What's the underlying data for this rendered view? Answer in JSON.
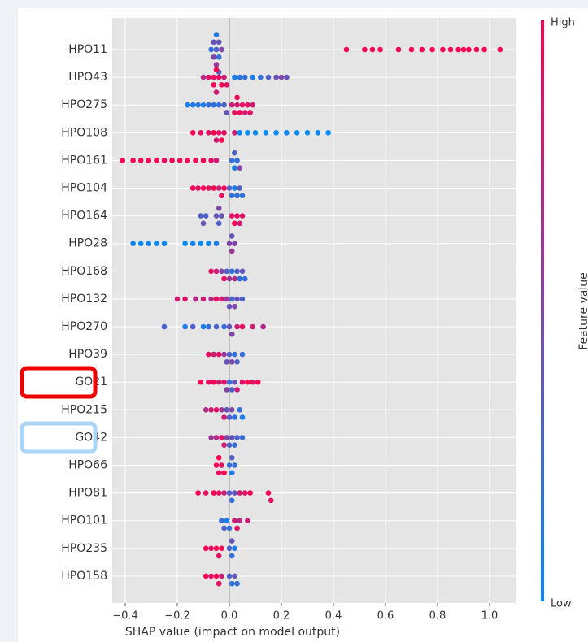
{
  "chart_data": {
    "type": "beeswarm",
    "xlabel": "SHAP value (impact on model output)",
    "xlim": [
      -0.45,
      1.1
    ],
    "xticks": [
      {
        "value": -0.4,
        "label": "−0.4"
      },
      {
        "value": -0.2,
        "label": "−0.2"
      },
      {
        "value": 0,
        "label": "0.0"
      },
      0.2,
      0.4,
      0.6,
      0.8,
      {
        "value": 1.0,
        "label": "1.0"
      }
    ],
    "grid": true,
    "low_color": "#008bfb",
    "high_color": "#ff0052",
    "colorbar_title": "Feature value",
    "colorbar_high": "High",
    "colorbar_low": "Low",
    "series": [
      {
        "name": "HPO11",
        "values": [
          -0.07,
          -0.06,
          -0.05,
          -0.05,
          -0.04,
          -0.04,
          -0.03,
          -0.05,
          -0.06,
          -0.04,
          0.45,
          0.52,
          0.55,
          0.58,
          0.65,
          0.7,
          0.74,
          0.78,
          0.82,
          0.85,
          0.88,
          0.9,
          0.92,
          0.95,
          0.98,
          1.04
        ],
        "feature_values": [
          0.2,
          0.5,
          0.3,
          0.6,
          0.2,
          0.4,
          0.5,
          0.1,
          0.4,
          0.3,
          1,
          1,
          1,
          1,
          1,
          1,
          1,
          1,
          1,
          1,
          1,
          1,
          1,
          1,
          1,
          1
        ]
      },
      {
        "name": "HPO43",
        "values": [
          -0.1,
          -0.08,
          -0.06,
          -0.05,
          -0.05,
          -0.04,
          -0.03,
          -0.02,
          -0.01,
          -0.06,
          0.02,
          0.04,
          0.06,
          0.09,
          0.12,
          0.15,
          0.18,
          0.2,
          0.22
        ],
        "feature_values": [
          0.7,
          0.9,
          0.9,
          1,
          0.8,
          0.9,
          1,
          0.8,
          0.9,
          0.95,
          0.1,
          0.15,
          0.2,
          0.1,
          0.2,
          0.3,
          0.4,
          0.5,
          0.4
        ]
      },
      {
        "name": "HPO275",
        "values": [
          -0.16,
          -0.14,
          -0.12,
          -0.1,
          -0.08,
          -0.06,
          -0.04,
          -0.02,
          -0.01,
          0.01,
          0.02,
          0.03,
          0.04,
          0.05,
          0.06,
          0.07,
          0.08,
          0.09,
          0.03
        ],
        "feature_values": [
          0.1,
          0.1,
          0.15,
          0.1,
          0.2,
          0.15,
          0.2,
          0.3,
          0.4,
          0.8,
          0.9,
          0.8,
          1,
          0.9,
          0.8,
          0.9,
          0.9,
          0.8,
          0.95
        ]
      },
      {
        "name": "HPO108",
        "values": [
          -0.14,
          -0.11,
          -0.08,
          -0.06,
          -0.05,
          -0.04,
          -0.03,
          -0.02,
          0.02,
          0.04,
          0.07,
          0.1,
          0.14,
          0.18,
          0.22,
          0.26,
          0.3,
          0.34,
          0.38
        ],
        "feature_values": [
          1,
          0.9,
          0.9,
          1,
          0.8,
          0.9,
          1,
          0.9,
          0.8,
          0,
          0,
          0.05,
          0,
          0,
          0.05,
          0,
          0,
          0.05,
          0
        ]
      },
      {
        "name": "HPO161",
        "values": [
          -0.41,
          -0.37,
          -0.34,
          -0.31,
          -0.28,
          -0.25,
          -0.22,
          -0.19,
          -0.16,
          -0.13,
          -0.1,
          -0.07,
          -0.05,
          0.01,
          0.02,
          0.02,
          0.03,
          0.04
        ],
        "feature_values": [
          1,
          1,
          1,
          1,
          1,
          0.95,
          1,
          1,
          1,
          0.95,
          1,
          0.9,
          0.8,
          0.2,
          0.1,
          0.3,
          0.2,
          0.5
        ]
      },
      {
        "name": "HPO104",
        "values": [
          -0.14,
          -0.12,
          -0.1,
          -0.08,
          -0.06,
          -0.04,
          -0.03,
          -0.02,
          0.0,
          0.01,
          0.02,
          0.03,
          0.04,
          0.05
        ],
        "feature_values": [
          1,
          0.9,
          1,
          0.9,
          1,
          0.8,
          0.9,
          1,
          0.3,
          0.2,
          0.1,
          0.2,
          0.3,
          0.2
        ]
      },
      {
        "name": "HPO164",
        "values": [
          -0.11,
          -0.1,
          -0.09,
          -0.05,
          -0.04,
          -0.04,
          -0.03,
          0.01,
          0.02,
          0.03,
          0.04,
          0.05
        ],
        "feature_values": [
          0.3,
          0.4,
          0.3,
          0.4,
          0.3,
          0.5,
          0.4,
          0.9,
          1,
          0.9,
          0.8,
          0.9
        ]
      },
      {
        "name": "HPO28",
        "values": [
          -0.37,
          -0.34,
          -0.31,
          -0.28,
          -0.25,
          -0.17,
          -0.14,
          -0.11,
          -0.08,
          -0.05,
          0.0,
          0.01,
          0.01,
          0.02
        ],
        "feature_values": [
          0.05,
          0,
          0.05,
          0,
          0.05,
          0,
          0.05,
          0,
          0.05,
          0.1,
          0.5,
          0.6,
          0.4,
          0.5
        ]
      },
      {
        "name": "HPO168",
        "values": [
          -0.07,
          -0.05,
          -0.03,
          -0.02,
          -0.01,
          0.0,
          0.01,
          0.02,
          0.03,
          0.04,
          0.05,
          0.06
        ],
        "feature_values": [
          0.9,
          0.8,
          0.5,
          0.9,
          0.3,
          0.6,
          0.2,
          0.7,
          0.3,
          0.2,
          0.4,
          0.2
        ]
      },
      {
        "name": "HPO132",
        "values": [
          -0.2,
          -0.17,
          -0.13,
          -0.1,
          -0.07,
          -0.05,
          -0.03,
          -0.01,
          0.0,
          0.01,
          0.02,
          0.03,
          0.05
        ],
        "feature_values": [
          0.8,
          0.9,
          0.7,
          0.8,
          0.7,
          0.9,
          0.8,
          0.6,
          0.4,
          0.3,
          0.5,
          0.4,
          0.3
        ]
      },
      {
        "name": "HPO270",
        "values": [
          -0.25,
          -0.17,
          -0.14,
          -0.1,
          -0.08,
          -0.05,
          -0.02,
          0.0,
          0.01,
          0.03,
          0.05,
          0.09,
          0.13
        ],
        "feature_values": [
          0.3,
          0.1,
          0.3,
          0.1,
          0.2,
          0.3,
          0.2,
          0.4,
          0.5,
          0.8,
          0.9,
          0.8,
          0.7
        ]
      },
      {
        "name": "HPO39",
        "values": [
          -0.08,
          -0.06,
          -0.04,
          -0.02,
          -0.01,
          0.0,
          0.01,
          0.02,
          0.03,
          0.05
        ],
        "feature_values": [
          0.9,
          0.8,
          0.9,
          0.6,
          0.4,
          0.3,
          0.5,
          0.2,
          0.3,
          0.2
        ]
      },
      {
        "name": "GO21",
        "values": [
          -0.11,
          -0.08,
          -0.06,
          -0.04,
          -0.02,
          -0.01,
          0.0,
          0.01,
          0.02,
          0.03,
          0.05,
          0.07,
          0.09,
          0.11
        ],
        "feature_values": [
          1,
          0.9,
          1,
          0.8,
          0.9,
          0.5,
          0.2,
          0.3,
          0.4,
          0.8,
          0.9,
          1,
          0.9,
          1
        ]
      },
      {
        "name": "HPO215",
        "values": [
          -0.09,
          -0.07,
          -0.05,
          -0.03,
          -0.02,
          -0.01,
          0.0,
          0.01,
          0.02,
          0.04,
          0.05
        ],
        "feature_values": [
          0.7,
          0.8,
          0.9,
          0.6,
          0.8,
          0.4,
          0.3,
          0.5,
          0.2,
          0.2,
          0.1
        ]
      },
      {
        "name": "GO42",
        "values": [
          -0.07,
          -0.05,
          -0.03,
          -0.02,
          -0.01,
          0.0,
          0.01,
          0.02,
          0.03,
          0.05
        ],
        "feature_values": [
          0.6,
          0.7,
          0.9,
          0.8,
          0.5,
          0.3,
          0.4,
          0.2,
          0.3,
          0.2
        ]
      },
      {
        "name": "HPO66",
        "values": [
          -0.05,
          -0.04,
          -0.04,
          -0.03,
          -0.02,
          0.0,
          0.01,
          0.01,
          0.02
        ],
        "feature_values": [
          1,
          0.9,
          1,
          0.9,
          1,
          0.2,
          0.1,
          0.3,
          0.2
        ]
      },
      {
        "name": "HPO81",
        "values": [
          -0.12,
          -0.09,
          -0.06,
          -0.04,
          -0.02,
          0.0,
          0.01,
          0.02,
          0.04,
          0.06,
          0.08,
          0.15,
          0.16
        ],
        "feature_values": [
          1,
          0.9,
          1,
          0.9,
          0.8,
          0.3,
          0.2,
          0.4,
          0.8,
          0.9,
          1,
          1,
          0.9
        ]
      },
      {
        "name": "HPO101",
        "values": [
          -0.03,
          -0.02,
          -0.01,
          0.0,
          0.02,
          0.03,
          0.04,
          0.07
        ],
        "feature_values": [
          0.2,
          0.3,
          0.1,
          0.2,
          0.8,
          0.9,
          0.7,
          0.8
        ]
      },
      {
        "name": "HPO235",
        "values": [
          -0.09,
          -0.07,
          -0.05,
          -0.04,
          -0.03,
          0.0,
          0.01,
          0.01,
          0.02
        ],
        "feature_values": [
          1,
          0.9,
          1,
          0.9,
          1,
          0.3,
          0.2,
          0.4,
          0.1
        ]
      },
      {
        "name": "HPO158",
        "values": [
          -0.09,
          -0.07,
          -0.05,
          -0.04,
          -0.03,
          0.0,
          0.01,
          0.02,
          0.03
        ],
        "feature_values": [
          1,
          0.9,
          1,
          0.9,
          0.8,
          0.3,
          0.2,
          0.4,
          0.2
        ]
      }
    ]
  }
}
